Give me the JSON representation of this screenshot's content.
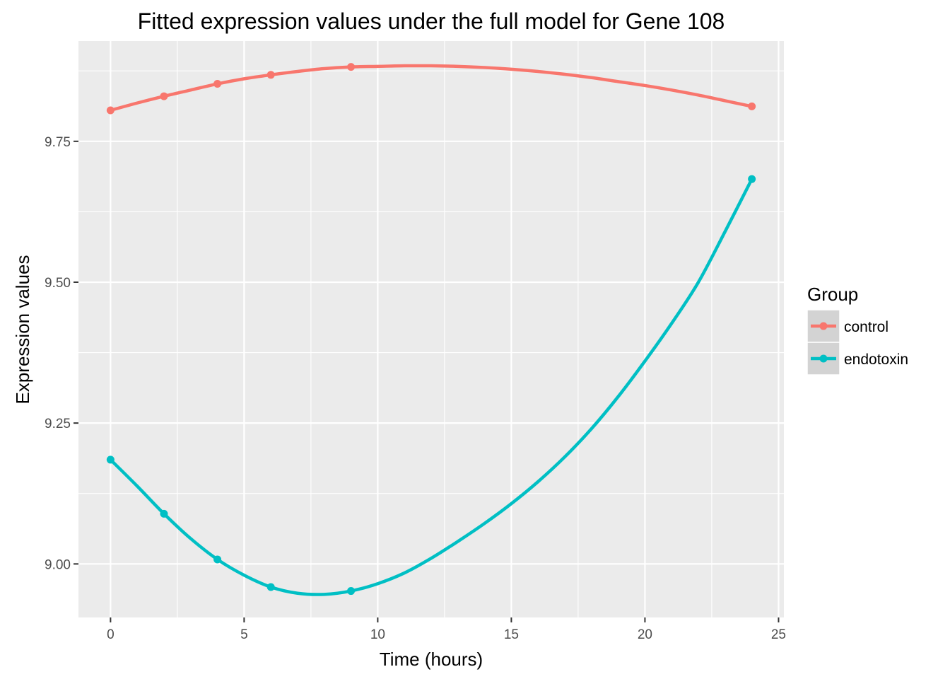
{
  "chart_data": {
    "type": "line",
    "title": "Fitted expression values under the full model for Gene 108",
    "xlabel": "Time (hours)",
    "ylabel": "Expression values",
    "xlim": [
      -1.2,
      25.2
    ],
    "ylim": [
      8.905,
      9.928
    ],
    "x_ticks": [
      0,
      5,
      10,
      15,
      20,
      25
    ],
    "x_tick_labels": [
      "0",
      "5",
      "10",
      "15",
      "20",
      "25"
    ],
    "y_ticks": [
      9.0,
      9.25,
      9.5,
      9.75
    ],
    "y_tick_labels": [
      "9.00",
      "9.25",
      "9.50",
      "9.75"
    ],
    "grid": true,
    "panel_background": "#ebebeb",
    "legend": {
      "title": "Group",
      "placement": "right"
    },
    "series": [
      {
        "name": "control",
        "color": "#f8766d",
        "points": {
          "x": [
            0,
            2,
            4,
            6,
            9,
            24
          ],
          "y": [
            9.805,
            9.83,
            9.852,
            9.868,
            9.882,
            9.812
          ]
        },
        "curve": {
          "x": [
            0,
            1,
            2,
            3,
            4,
            5,
            6,
            7,
            8,
            9,
            10,
            11,
            12,
            13,
            14,
            15,
            16,
            17,
            18,
            19,
            20,
            21,
            22,
            23,
            24
          ],
          "y": [
            9.805,
            9.818,
            9.83,
            9.841,
            9.852,
            9.861,
            9.868,
            9.874,
            9.879,
            9.882,
            9.883,
            9.884,
            9.884,
            9.883,
            9.881,
            9.878,
            9.874,
            9.869,
            9.863,
            9.856,
            9.849,
            9.841,
            9.832,
            9.822,
            9.812
          ]
        }
      },
      {
        "name": "endotoxin",
        "color": "#00bfc4",
        "points": {
          "x": [
            0,
            2,
            4,
            6,
            9,
            24
          ],
          "y": [
            9.185,
            9.089,
            9.008,
            8.959,
            8.952,
            9.683
          ]
        },
        "curve": {
          "x": [
            0,
            1,
            2,
            3,
            4,
            5,
            6,
            7,
            8,
            9,
            10,
            11,
            12,
            13,
            14,
            15,
            16,
            17,
            18,
            19,
            20,
            21,
            22,
            23,
            24
          ],
          "y": [
            9.185,
            9.138,
            9.089,
            9.045,
            9.008,
            8.98,
            8.959,
            8.948,
            8.946,
            8.952,
            8.965,
            8.984,
            9.01,
            9.04,
            9.072,
            9.107,
            9.146,
            9.19,
            9.24,
            9.297,
            9.36,
            9.427,
            9.5,
            9.59,
            9.683
          ]
        }
      }
    ]
  }
}
